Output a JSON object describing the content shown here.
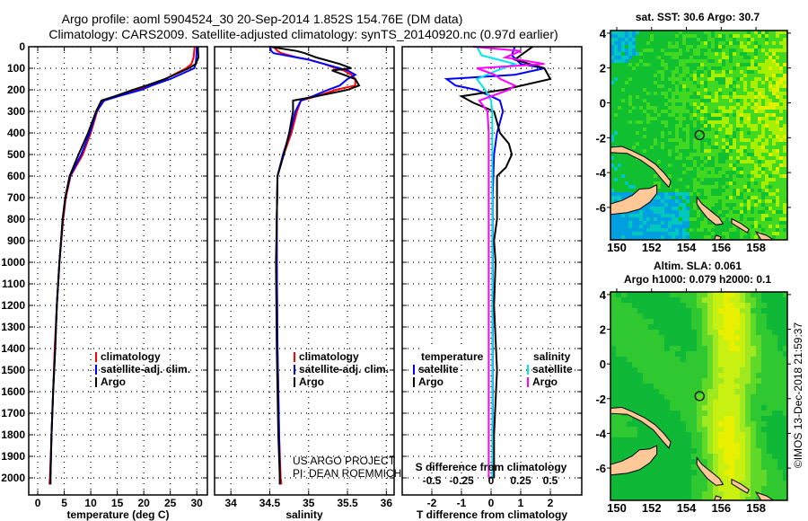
{
  "title": {
    "line1": "Argo profile: aoml 5904524_30 20-Sep-2014 1.852S 154.76E (DM data)",
    "line2": "Climatology: CARS2009. Satellite-adjusted climatology: synTS_20140920.nc (0.97d earlier)"
  },
  "credit": {
    "line1": "US ARGO PROJECT",
    "line2": "PI: DEAN ROEMMICH"
  },
  "timestamp": "©IMOS 13-Dec-2018 21:59:37",
  "colors": {
    "climatology": "#ff0000",
    "satellite": "#0000ff",
    "argo": "#000000",
    "sal_satellite": "#00e5ee",
    "sal_argo": "#ff00ff"
  },
  "chart_data": [
    {
      "type": "line",
      "xlabel": "temperature (deg C)",
      "ylabel": "depth",
      "xlim": [
        -1.7,
        32
      ],
      "ylim": [
        2080,
        0
      ],
      "xticks": [
        "0",
        "5",
        "10",
        "15",
        "20",
        "25",
        "30"
      ],
      "yticks": [
        "0",
        "100",
        "200",
        "300",
        "400",
        "500",
        "600",
        "700",
        "800",
        "900",
        "1000",
        "1100",
        "1200",
        "1300",
        "1400",
        "1500",
        "1600",
        "1700",
        "1800",
        "1900",
        "2000"
      ],
      "grid": true,
      "legend": {
        "placement": "lower-middle",
        "entries": [
          "climatology",
          "satellite-adj. clim.",
          "Argo"
        ]
      },
      "depth": [
        0,
        50,
        80,
        100,
        150,
        180,
        200,
        230,
        250,
        300,
        400,
        500,
        600,
        700,
        800,
        1000,
        1200,
        1400,
        1600,
        1800,
        2000,
        2030
      ],
      "series": [
        {
          "name": "climatology",
          "color": "#ff0000",
          "values": [
            29.6,
            29.4,
            29.0,
            28.0,
            24.0,
            21.0,
            19.0,
            15.0,
            12.3,
            11.2,
            10.0,
            8.5,
            6.2,
            5.3,
            4.8,
            4.1,
            3.6,
            3.2,
            2.9,
            2.6,
            2.3,
            2.2
          ]
        },
        {
          "name": "satellite-adj. clim.",
          "color": "#0000ff",
          "values": [
            30.0,
            29.9,
            29.8,
            29.5,
            25.0,
            21.5,
            19.5,
            15.2,
            12.5,
            11.1,
            9.8,
            8.2,
            6.1,
            5.2,
            4.7,
            4.1,
            3.6,
            3.3,
            2.9,
            2.6,
            2.4,
            2.4
          ]
        },
        {
          "name": "Argo",
          "color": "#000000",
          "values": [
            30.2,
            30.3,
            29.8,
            28.5,
            24.0,
            20.5,
            18.0,
            14.5,
            12.0,
            11.0,
            9.5,
            7.7,
            6.0,
            5.2,
            4.7,
            4.1,
            3.6,
            3.3,
            2.9,
            2.6,
            2.4,
            2.4
          ]
        }
      ]
    },
    {
      "type": "line",
      "xlabel": "salinity",
      "xlim": [
        33.79,
        36.1
      ],
      "ylim": [
        2080,
        0
      ],
      "xticks": [
        "34",
        "34.5",
        "35",
        "35.5",
        "36"
      ],
      "grid": true,
      "legend": {
        "placement": "lower-middle",
        "entries": [
          "climatology",
          "satellite-adj. clim.",
          "Argo"
        ]
      },
      "depth": [
        0,
        20,
        30,
        50,
        60,
        80,
        100,
        110,
        130,
        150,
        180,
        200,
        230,
        250,
        300,
        400,
        500,
        600,
        800,
        1000,
        1400,
        1800,
        2000,
        2030
      ],
      "series": [
        {
          "name": "climatology",
          "color": "#ff0000",
          "values": [
            34.55,
            34.6,
            34.65,
            34.85,
            35.0,
            35.2,
            35.35,
            35.45,
            35.55,
            35.6,
            35.6,
            35.35,
            35.1,
            34.9,
            34.85,
            34.78,
            34.68,
            34.6,
            34.59,
            34.59,
            34.6,
            34.62,
            34.64,
            34.65
          ]
        },
        {
          "name": "satellite-adj. clim.",
          "color": "#0000ff",
          "values": [
            34.5,
            34.52,
            34.55,
            34.85,
            35.0,
            35.2,
            35.4,
            35.5,
            35.6,
            35.5,
            35.4,
            35.25,
            35.05,
            34.9,
            34.83,
            34.76,
            34.67,
            34.6,
            34.59,
            34.59,
            34.6,
            34.62,
            34.63,
            34.63
          ]
        },
        {
          "name": "Argo",
          "color": "#000000",
          "values": [
            34.5,
            34.85,
            34.95,
            35.1,
            35.2,
            35.4,
            35.55,
            35.3,
            35.45,
            35.6,
            35.65,
            35.5,
            35.1,
            34.8,
            34.8,
            34.75,
            34.68,
            34.6,
            34.59,
            34.58,
            34.59,
            34.61,
            34.63,
            34.63
          ]
        }
      ]
    },
    {
      "type": "line",
      "xlabel": "T difference from climatology",
      "x2label": "S difference from climatology",
      "xlim": [
        -3,
        3.06
      ],
      "x2lim": [
        -0.75,
        0.765
      ],
      "ylim": [
        2080,
        0
      ],
      "xticks": [
        "-2",
        "-1",
        "0",
        "1",
        "2"
      ],
      "x2ticks": [
        "-0.5",
        "-0.25",
        "0",
        "0.25",
        "0.5"
      ],
      "grid": true,
      "legend": {
        "placement": "lower-middle",
        "temperature_title": "temperature",
        "salinity_title": "salinity",
        "entries": [
          "satellite",
          "Argo",
          "satellite",
          "Argo"
        ]
      },
      "series": [
        {
          "name": "temperature satellite",
          "color": "#0000ff",
          "axis": "T",
          "depth": [
            0,
            40,
            80,
            100,
            130,
            150,
            180,
            200,
            230,
            250,
            300,
            400,
            500,
            700,
            1000,
            2000
          ],
          "values": [
            0.8,
            0.7,
            1.0,
            1.8,
            0.8,
            -1.5,
            -1.2,
            -0.5,
            0.0,
            0.3,
            0.4,
            0.2,
            0.1,
            0.05,
            0.05,
            0.05
          ]
        },
        {
          "name": "temperature Argo",
          "color": "#000000",
          "axis": "T",
          "depth": [
            0,
            20,
            40,
            60,
            100,
            150,
            200,
            230,
            260,
            300,
            400,
            450,
            500,
            560,
            600,
            700,
            800,
            900,
            1000,
            1200,
            1500,
            1800,
            2000
          ],
          "values": [
            1.4,
            1.2,
            1.0,
            0.8,
            1.8,
            2.0,
            0.4,
            -1.0,
            -0.6,
            0.1,
            0.3,
            0.6,
            0.7,
            0.5,
            0.2,
            0.2,
            0.2,
            0.1,
            0.15,
            0.1,
            0.2,
            0.1,
            0.1
          ]
        },
        {
          "name": "salinity satellite",
          "color": "#00e5ee",
          "axis": "S",
          "depth": [
            0,
            40,
            80,
            110,
            150,
            200,
            250,
            300,
            2000
          ],
          "values": [
            -0.12,
            -0.08,
            0.2,
            0.05,
            -0.12,
            -0.05,
            0.0,
            0.01,
            0.01
          ]
        },
        {
          "name": "salinity Argo",
          "color": "#ff00ff",
          "axis": "S",
          "depth": [
            0,
            20,
            50,
            80,
            100,
            130,
            150,
            180,
            200,
            250,
            300,
            400,
            2000
          ],
          "values": [
            -0.15,
            0.25,
            0.12,
            0.45,
            -0.12,
            0.03,
            0.08,
            0.2,
            0.15,
            -0.1,
            -0.03,
            -0.02,
            -0.02
          ]
        }
      ]
    },
    {
      "type": "heatmap",
      "title": "sat. SST: 30.6 Argo: 30.7",
      "xlim": [
        149.64,
        159.8
      ],
      "ylim": [
        -7.86,
        4.15
      ],
      "xticks": [
        "150",
        "152",
        "154",
        "156",
        "158"
      ],
      "yticks": [
        "4",
        "2",
        "0",
        "-2",
        "-4",
        "-6"
      ],
      "marker": {
        "lon": 154.76,
        "lat": -1.852
      }
    },
    {
      "type": "heatmap",
      "title": "Altim. SLA: 0.061",
      "subtitle": "Argo h1000: 0.079 h2000: 0.1",
      "xlim": [
        149.64,
        159.8
      ],
      "ylim": [
        -7.86,
        4.15
      ],
      "xticks": [
        "150",
        "152",
        "154",
        "156",
        "158"
      ],
      "yticks": [
        "4",
        "2",
        "0",
        "-2",
        "-4",
        "-6"
      ],
      "marker": {
        "lon": 154.76,
        "lat": -1.852
      }
    }
  ]
}
